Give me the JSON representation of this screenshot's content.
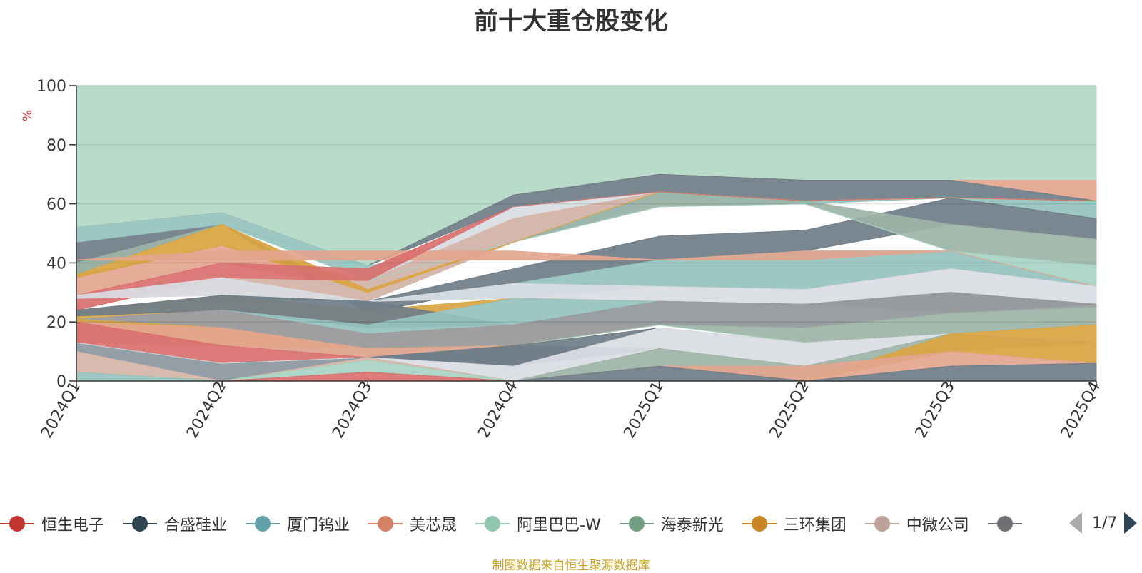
{
  "chart_data": {
    "type": "area",
    "stacked": false,
    "title": "前十大重仓股变化",
    "ylabel": "%",
    "xlabel": "",
    "ylim": [
      0,
      100
    ],
    "yticks": [
      "0",
      "20",
      "40",
      "60",
      "80",
      "100"
    ],
    "grid": true,
    "legend_position": "bottom",
    "categories": [
      "2024Q1",
      "2024Q2",
      "2024Q3",
      "2024Q4",
      "2025Q1",
      "2025Q2",
      "2025Q3",
      "2025Q4"
    ],
    "series": [
      {
        "name": "",
        "color": "#b3d8c6",
        "upper": [
          100,
          100,
          100,
          100,
          100,
          100,
          100,
          100
        ],
        "lower": [
          52,
          57,
          39,
          63,
          70,
          68,
          68,
          68
        ]
      },
      {
        "name": "",
        "color": "#e3a58e",
        "upper": [
          52,
          57,
          39,
          63,
          70,
          68,
          68,
          68
        ],
        "lower": [
          52,
          57,
          39,
          63,
          70,
          68,
          68,
          61
        ]
      },
      {
        "name": "",
        "color": "#6f7d88",
        "upper": [
          47,
          53,
          39,
          63,
          70,
          68,
          68,
          61
        ],
        "lower": [
          40,
          53,
          39,
          59,
          64,
          61,
          62,
          61
        ]
      },
      {
        "name": "",
        "color": "#96c2bf",
        "upper": [
          52,
          57,
          39,
          47,
          64,
          61,
          62,
          61
        ],
        "lower": [
          47,
          53,
          34,
          47,
          60,
          60,
          62,
          55
        ]
      },
      {
        "name": "",
        "color": "#e3a58e",
        "upper": [
          36,
          46,
          34,
          54,
          64,
          61,
          62,
          61
        ],
        "lower": [
          29,
          40,
          31,
          47,
          64,
          61,
          62,
          61
        ]
      },
      {
        "name": "",
        "color": "#6f7d88",
        "upper": [
          40,
          53,
          27,
          38,
          49,
          51,
          62,
          55
        ],
        "lower": [
          36,
          53,
          23,
          33,
          41,
          44,
          53,
          48
        ]
      },
      {
        "name": "",
        "color": "#d9dde3",
        "upper": [
          29,
          35,
          34,
          59,
          64,
          61,
          62,
          61
        ],
        "lower": [
          28,
          29,
          27,
          47,
          64,
          61,
          62,
          61
        ]
      },
      {
        "name": "",
        "color": "#d5b5a8",
        "upper": [
          29,
          35,
          34,
          55,
          64,
          61,
          62,
          61
        ],
        "lower": [
          28,
          29,
          27,
          47,
          64,
          61,
          62,
          61
        ]
      },
      {
        "name": "",
        "color": "#9db4a8",
        "upper": [
          40,
          53,
          34,
          47,
          64,
          61,
          53,
          48
        ],
        "lower": [
          36,
          53,
          34,
          47,
          59,
          60,
          44,
          39
        ]
      },
      {
        "name": "",
        "color": "#a8d4c4",
        "upper": [
          36,
          53,
          34,
          47,
          59,
          60,
          44,
          39
        ],
        "lower": [
          36,
          53,
          34,
          47,
          59,
          60,
          44,
          32
        ]
      },
      {
        "name": "",
        "color": "#96c2bf",
        "upper": [
          24,
          29,
          27,
          33,
          41,
          44,
          44,
          32
        ],
        "lower": [
          22,
          28,
          27,
          28,
          32,
          31,
          38,
          32
        ]
      },
      {
        "name": "",
        "color": "#d9a441",
        "upper": [
          36,
          53,
          31,
          47,
          64,
          61,
          62,
          61
        ],
        "lower": [
          35,
          46,
          30,
          47,
          64,
          61,
          62,
          61
        ]
      },
      {
        "name": "",
        "color": "#e3a58e",
        "upper": [
          41,
          44,
          44,
          44,
          41,
          44,
          44,
          32
        ],
        "lower": [
          41,
          41,
          41,
          41,
          41,
          41,
          44,
          32
        ]
      },
      {
        "name": "",
        "color": "#d9706e",
        "upper": [
          29,
          40,
          38,
          59,
          64,
          61,
          62,
          61
        ],
        "lower": [
          24,
          35,
          34,
          59,
          64,
          61,
          62,
          61
        ]
      },
      {
        "name": "",
        "color": "#d9dde3",
        "upper": [
          29,
          35,
          27,
          33,
          32,
          31,
          38,
          32
        ],
        "lower": [
          28,
          29,
          27,
          28,
          27,
          26,
          30,
          26
        ]
      },
      {
        "name": "",
        "color": "#d9a441",
        "upper": [
          24,
          29,
          24,
          28,
          27,
          26,
          30,
          26
        ],
        "lower": [
          21,
          24,
          19,
          28,
          27,
          26,
          30,
          26
        ]
      },
      {
        "name": "",
        "color": "#6f7d88",
        "upper": [
          24,
          29,
          27,
          19,
          27,
          26,
          30,
          26
        ],
        "lower": [
          22,
          24,
          18,
          19,
          19,
          18,
          23,
          26
        ]
      },
      {
        "name": "",
        "color": "#96c2bf",
        "upper": [
          21,
          24,
          19,
          28,
          27,
          26,
          23,
          19
        ],
        "lower": [
          21,
          24,
          16,
          19,
          19,
          18,
          23,
          19
        ]
      },
      {
        "name": "",
        "color": "#d5b5a8",
        "upper": [
          21,
          24,
          16,
          19,
          19,
          18,
          23,
          19
        ],
        "lower": [
          20,
          18,
          11,
          12,
          19,
          18,
          23,
          19
        ]
      },
      {
        "name": "",
        "color": "#9a9c9f",
        "upper": [
          21,
          24,
          16,
          19,
          27,
          26,
          30,
          26
        ],
        "lower": [
          21,
          18,
          11,
          12,
          19,
          18,
          23,
          25
        ]
      },
      {
        "name": "",
        "color": "#9db4a8",
        "upper": [
          21,
          18,
          11,
          12,
          19,
          18,
          23,
          25
        ],
        "lower": [
          21,
          18,
          11,
          12,
          19,
          13,
          16,
          19
        ]
      },
      {
        "name": "",
        "color": "#a8d4c4",
        "upper": [
          21,
          18,
          11,
          12,
          19,
          13,
          16,
          19
        ],
        "lower": [
          21,
          12,
          8,
          12,
          19,
          13,
          16,
          19
        ]
      },
      {
        "name": "",
        "color": "#d9a441",
        "upper": [
          21,
          18,
          11,
          12,
          18,
          13,
          16,
          19
        ],
        "lower": [
          20,
          12,
          11,
          12,
          18,
          13,
          16,
          13
        ]
      },
      {
        "name": "",
        "color": "#e3a58e",
        "upper": [
          20,
          18,
          11,
          12,
          11,
          13,
          16,
          13
        ],
        "lower": [
          13,
          12,
          8,
          12,
          11,
          13,
          16,
          13
        ]
      },
      {
        "name": "",
        "color": "#d9706e",
        "upper": [
          20,
          12,
          8,
          12,
          11,
          5,
          11,
          13
        ],
        "lower": [
          13,
          6,
          8,
          12,
          11,
          5,
          11,
          13
        ]
      },
      {
        "name": "",
        "color": "#8a969e",
        "upper": [
          13,
          6,
          8,
          12,
          11,
          5,
          11,
          13
        ],
        "lower": [
          10,
          0,
          8,
          5,
          11,
          5,
          11,
          13
        ]
      },
      {
        "name": "",
        "color": "#6f7d88",
        "upper": [
          13,
          6,
          8,
          12,
          18,
          13,
          16,
          13
        ],
        "lower": [
          13,
          6,
          8,
          5,
          18,
          13,
          16,
          13
        ]
      },
      {
        "name": "",
        "color": "#d9dde3",
        "upper": [
          13,
          6,
          8,
          5,
          18,
          13,
          16,
          13
        ],
        "lower": [
          13,
          6,
          8,
          0,
          11,
          5,
          16,
          13
        ]
      },
      {
        "name": "",
        "color": "#d5b5a8",
        "upper": [
          10,
          0,
          8,
          0,
          11,
          5,
          16,
          13
        ],
        "lower": [
          3,
          0,
          7,
          0,
          11,
          5,
          16,
          13
        ]
      },
      {
        "name": "",
        "color": "#9db4a8",
        "upper": [
          3,
          0,
          7,
          0,
          11,
          5,
          16,
          13
        ],
        "lower": [
          3,
          0,
          7,
          0,
          5,
          0,
          10,
          13
        ]
      },
      {
        "name": "",
        "color": "#a8d4c4",
        "upper": [
          3,
          0,
          7,
          0,
          5,
          0,
          10,
          13
        ],
        "lower": [
          3,
          0,
          3,
          0,
          5,
          0,
          10,
          13
        ]
      },
      {
        "name": "",
        "color": "#d9a441",
        "upper": [
          3,
          0,
          3,
          0,
          5,
          0,
          16,
          13
        ],
        "lower": [
          3,
          0,
          3,
          0,
          5,
          0,
          10,
          6
        ]
      },
      {
        "name": "",
        "color": "#e3a58e",
        "upper": [
          3,
          0,
          3,
          0,
          5,
          5,
          10,
          6
        ],
        "lower": [
          3,
          0,
          3,
          0,
          5,
          0,
          5,
          6
        ]
      },
      {
        "name": "",
        "color": "#96c2bf",
        "upper": [
          3,
          0,
          3,
          0,
          5,
          0,
          5,
          6
        ],
        "lower": [
          0,
          0,
          3,
          0,
          5,
          0,
          5,
          6
        ]
      },
      {
        "name": "",
        "color": "#d9706e",
        "upper": [
          0,
          0,
          3,
          0,
          5,
          0,
          5,
          6
        ],
        "lower": [
          0,
          0,
          0,
          0,
          5,
          0,
          5,
          6
        ]
      },
      {
        "name": "",
        "color": "#6f7d88",
        "upper": [
          0,
          0,
          0,
          0,
          5,
          0,
          5,
          6
        ],
        "lower": [
          0,
          0,
          0,
          0,
          0,
          0,
          0,
          0
        ]
      }
    ],
    "legend": [
      {
        "name": "恒生电子",
        "color": "#c23531"
      },
      {
        "name": "合盛硅业",
        "color": "#2f4554"
      },
      {
        "name": "厦门钨业",
        "color": "#61a0a8"
      },
      {
        "name": "美芯晟",
        "color": "#d48265"
      },
      {
        "name": "阿里巴巴-W",
        "color": "#91c7ae"
      },
      {
        "name": "海泰新光",
        "color": "#749f83"
      },
      {
        "name": "三环集团",
        "color": "#ca8622"
      },
      {
        "name": "中微公司",
        "color": "#bda29a"
      },
      {
        "name": "",
        "color": "#6e7074"
      }
    ]
  },
  "legend_pager": {
    "text": "1/7"
  },
  "source_note": "制图数据来自恒生聚源数据库"
}
